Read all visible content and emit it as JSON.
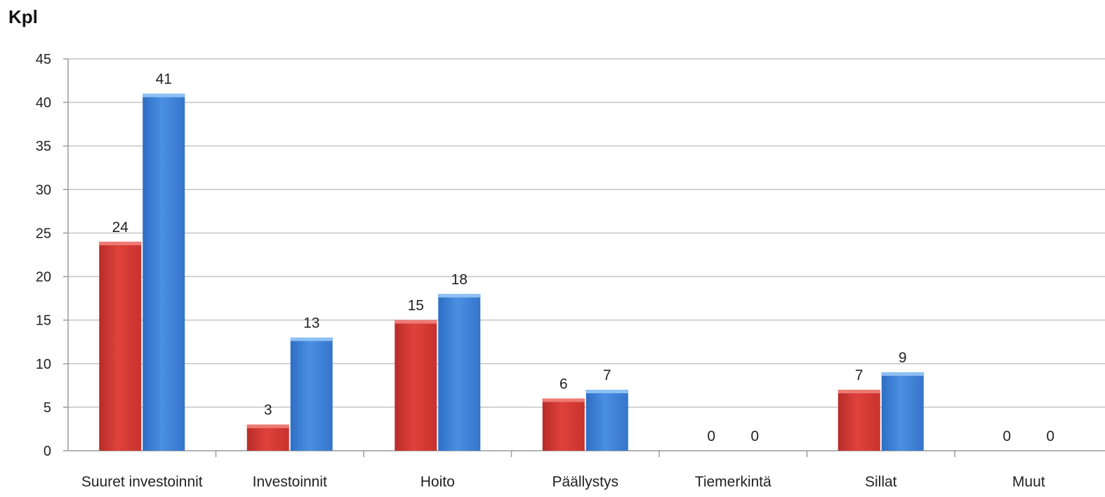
{
  "chart_data": {
    "type": "bar",
    "unit_label": "Kpl",
    "categories": [
      "Suuret investoinnit",
      "Investoinnit",
      "Hoito",
      "Päällystys",
      "Tiemerkintä",
      "Sillat",
      "Muut"
    ],
    "series": [
      {
        "values": [
          24,
          3,
          15,
          6,
          0,
          7,
          0
        ],
        "color": "#d23b35"
      },
      {
        "values": [
          41,
          13,
          18,
          7,
          0,
          9,
          0
        ],
        "color": "#3a7fd5"
      }
    ],
    "ylim": [
      0,
      45
    ],
    "yticks": [
      0,
      5,
      10,
      15,
      20,
      25,
      30,
      35,
      40,
      45
    ],
    "grid": true,
    "data_labels": true
  }
}
